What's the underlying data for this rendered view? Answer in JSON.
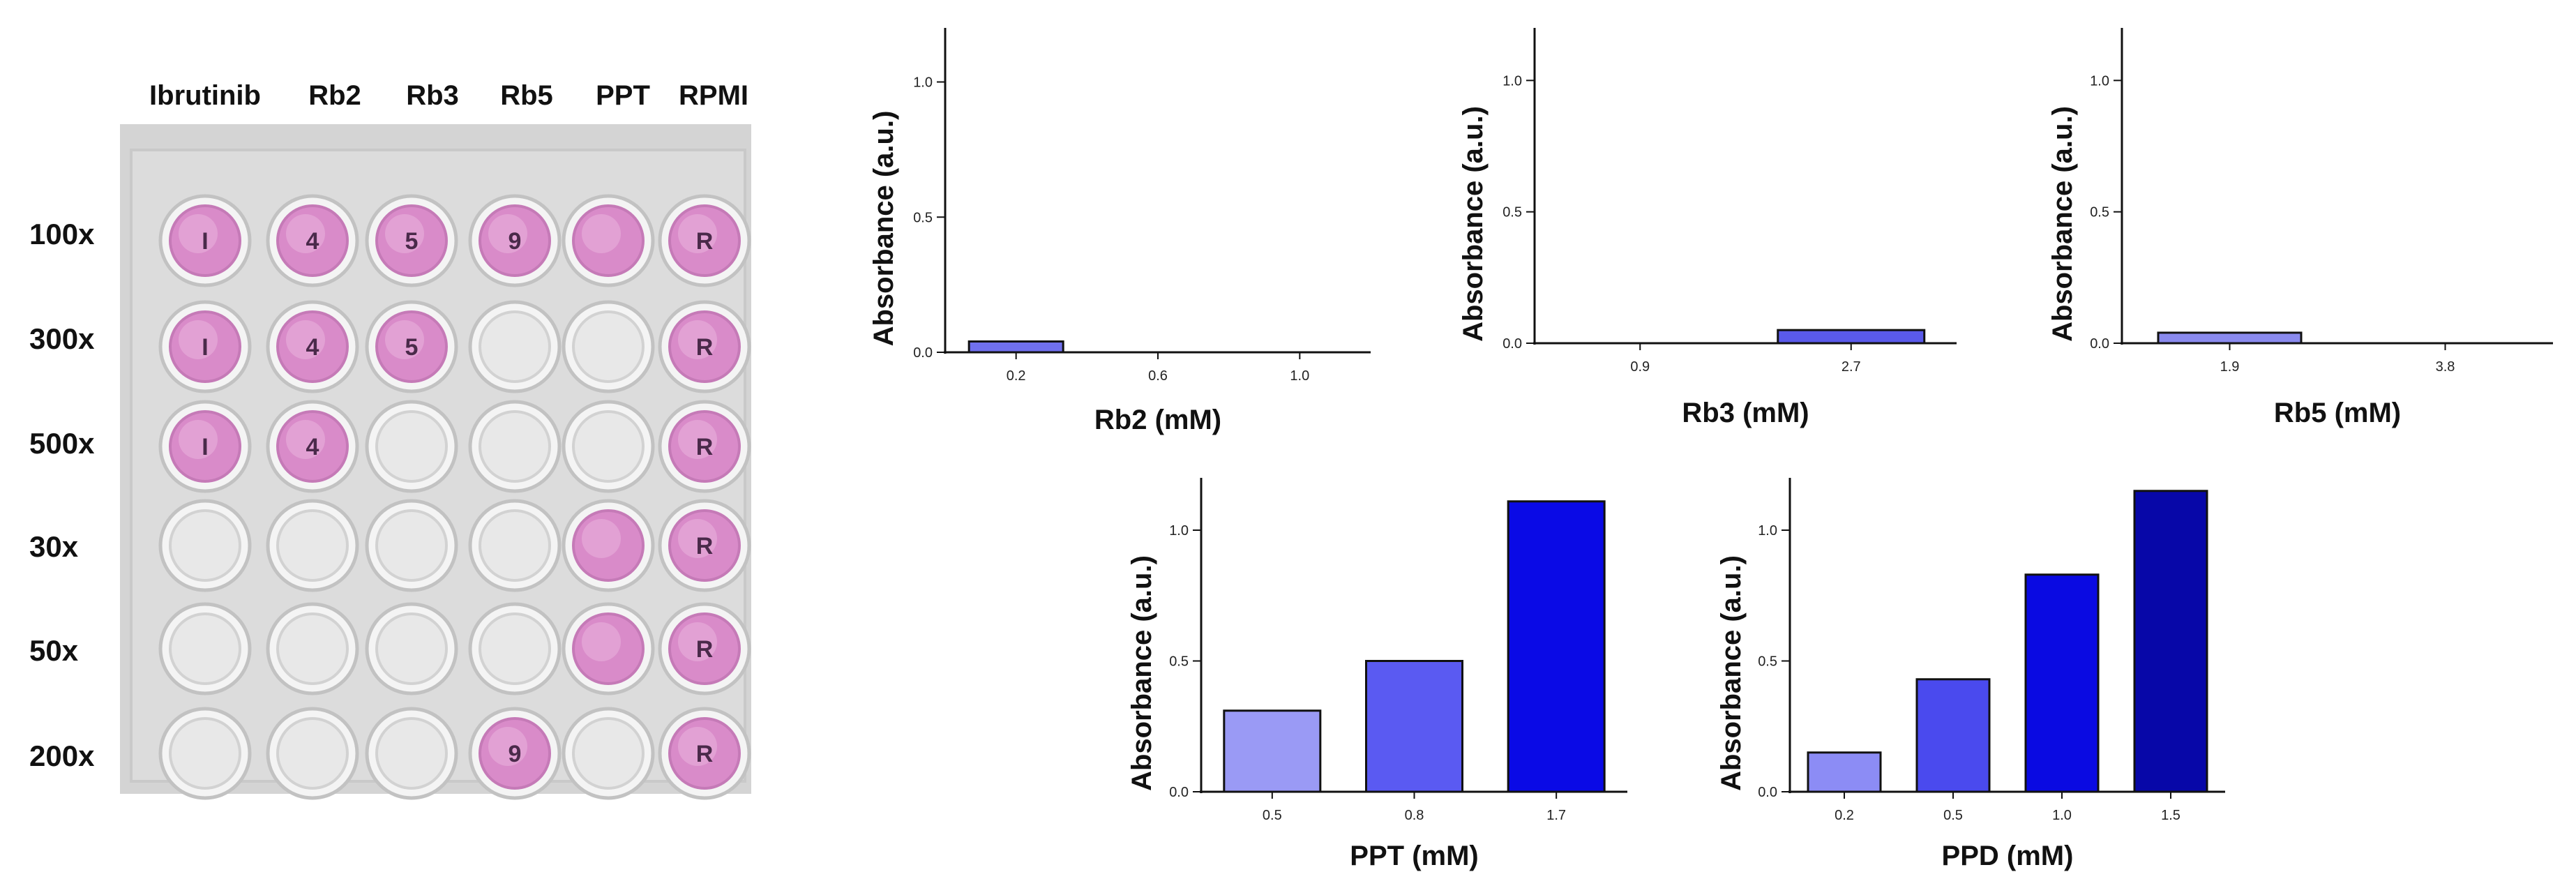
{
  "plate": {
    "columns": [
      "Ibrutinib",
      "Rb2",
      "Rb3",
      "Rb5",
      "PPT",
      "RPMI"
    ],
    "rows": [
      "100x",
      "300x",
      "500x",
      "30x",
      "50x",
      "200x"
    ],
    "pink_wells": [
      [
        true,
        true,
        true,
        true,
        true,
        true
      ],
      [
        true,
        true,
        true,
        false,
        false,
        true
      ],
      [
        true,
        true,
        false,
        false,
        false,
        true
      ],
      [
        false,
        false,
        false,
        false,
        true,
        true
      ],
      [
        false,
        false,
        false,
        false,
        true,
        true
      ],
      [
        false,
        false,
        false,
        true,
        false,
        true
      ]
    ],
    "well_marks": [
      [
        "I",
        "4",
        "5",
        "9",
        "",
        "R"
      ],
      [
        "I",
        "4",
        "5",
        "",
        "",
        "R"
      ],
      [
        "I",
        "4",
        "",
        "",
        "",
        "R"
      ],
      [
        "",
        "",
        "",
        "",
        "",
        "R"
      ],
      [
        "",
        "",
        "",
        "",
        "",
        "R"
      ],
      [
        "",
        "",
        "",
        "9",
        "",
        "R"
      ]
    ],
    "colors": {
      "pink": "#d98bc9",
      "pink_light": "#e9b5dc",
      "clear": "#e8e8e8",
      "frame": "#c9c9c9"
    }
  },
  "chart_data": [
    {
      "type": "bar",
      "ylabel": "Absorbance (a.u.)",
      "xlabel": "Rb2 (mM)",
      "categories": [
        "0.2",
        "0.6",
        "1.0"
      ],
      "values": [
        0.04,
        0,
        0
      ],
      "ylim": [
        0,
        1.2
      ],
      "yticks": [
        "0.0",
        "0.5",
        "1.0"
      ],
      "colors": [
        "#7070ee",
        "#7070ee",
        "#7070ee"
      ]
    },
    {
      "type": "bar",
      "ylabel": "Absorbance (a.u.)",
      "xlabel": "Rb3 (mM)",
      "categories": [
        "0.9",
        "2.7"
      ],
      "values": [
        0,
        0.05
      ],
      "ylim": [
        0,
        1.2
      ],
      "yticks": [
        "0.0",
        "0.5",
        "1.0"
      ],
      "colors": [
        "#5a5aea",
        "#5a5aea"
      ]
    },
    {
      "type": "bar",
      "ylabel": "Absorbance (a.u.)",
      "xlabel": "Rb5 (mM)",
      "categories": [
        "1.9",
        "3.8"
      ],
      "values": [
        0.04,
        0
      ],
      "ylim": [
        0,
        1.2
      ],
      "yticks": [
        "0.0",
        "0.5",
        "1.0"
      ],
      "colors": [
        "#8a8aee",
        "#8a8aee"
      ]
    },
    {
      "type": "bar",
      "ylabel": "Absorbance (a.u.)",
      "xlabel": "PPT (mM)",
      "categories": [
        "0.5",
        "0.8",
        "1.7"
      ],
      "values": [
        0.31,
        0.5,
        1.11
      ],
      "ylim": [
        0,
        1.2
      ],
      "yticks": [
        "0.0",
        "0.5",
        "1.0"
      ],
      "colors": [
        "#9a9af5",
        "#5a5af2",
        "#0a0ae6"
      ]
    },
    {
      "type": "bar",
      "ylabel": "Absorbance (a.u.)",
      "xlabel": "PPD (mM)",
      "categories": [
        "0.2",
        "0.5",
        "1.0",
        "1.5"
      ],
      "values": [
        0.15,
        0.43,
        0.83,
        1.15
      ],
      "ylim": [
        0,
        1.2
      ],
      "yticks": [
        "0.0",
        "0.5",
        "1.0"
      ],
      "colors": [
        "#8c8cf5",
        "#4a4aee",
        "#0a0ae2",
        "#0707a8"
      ]
    }
  ]
}
